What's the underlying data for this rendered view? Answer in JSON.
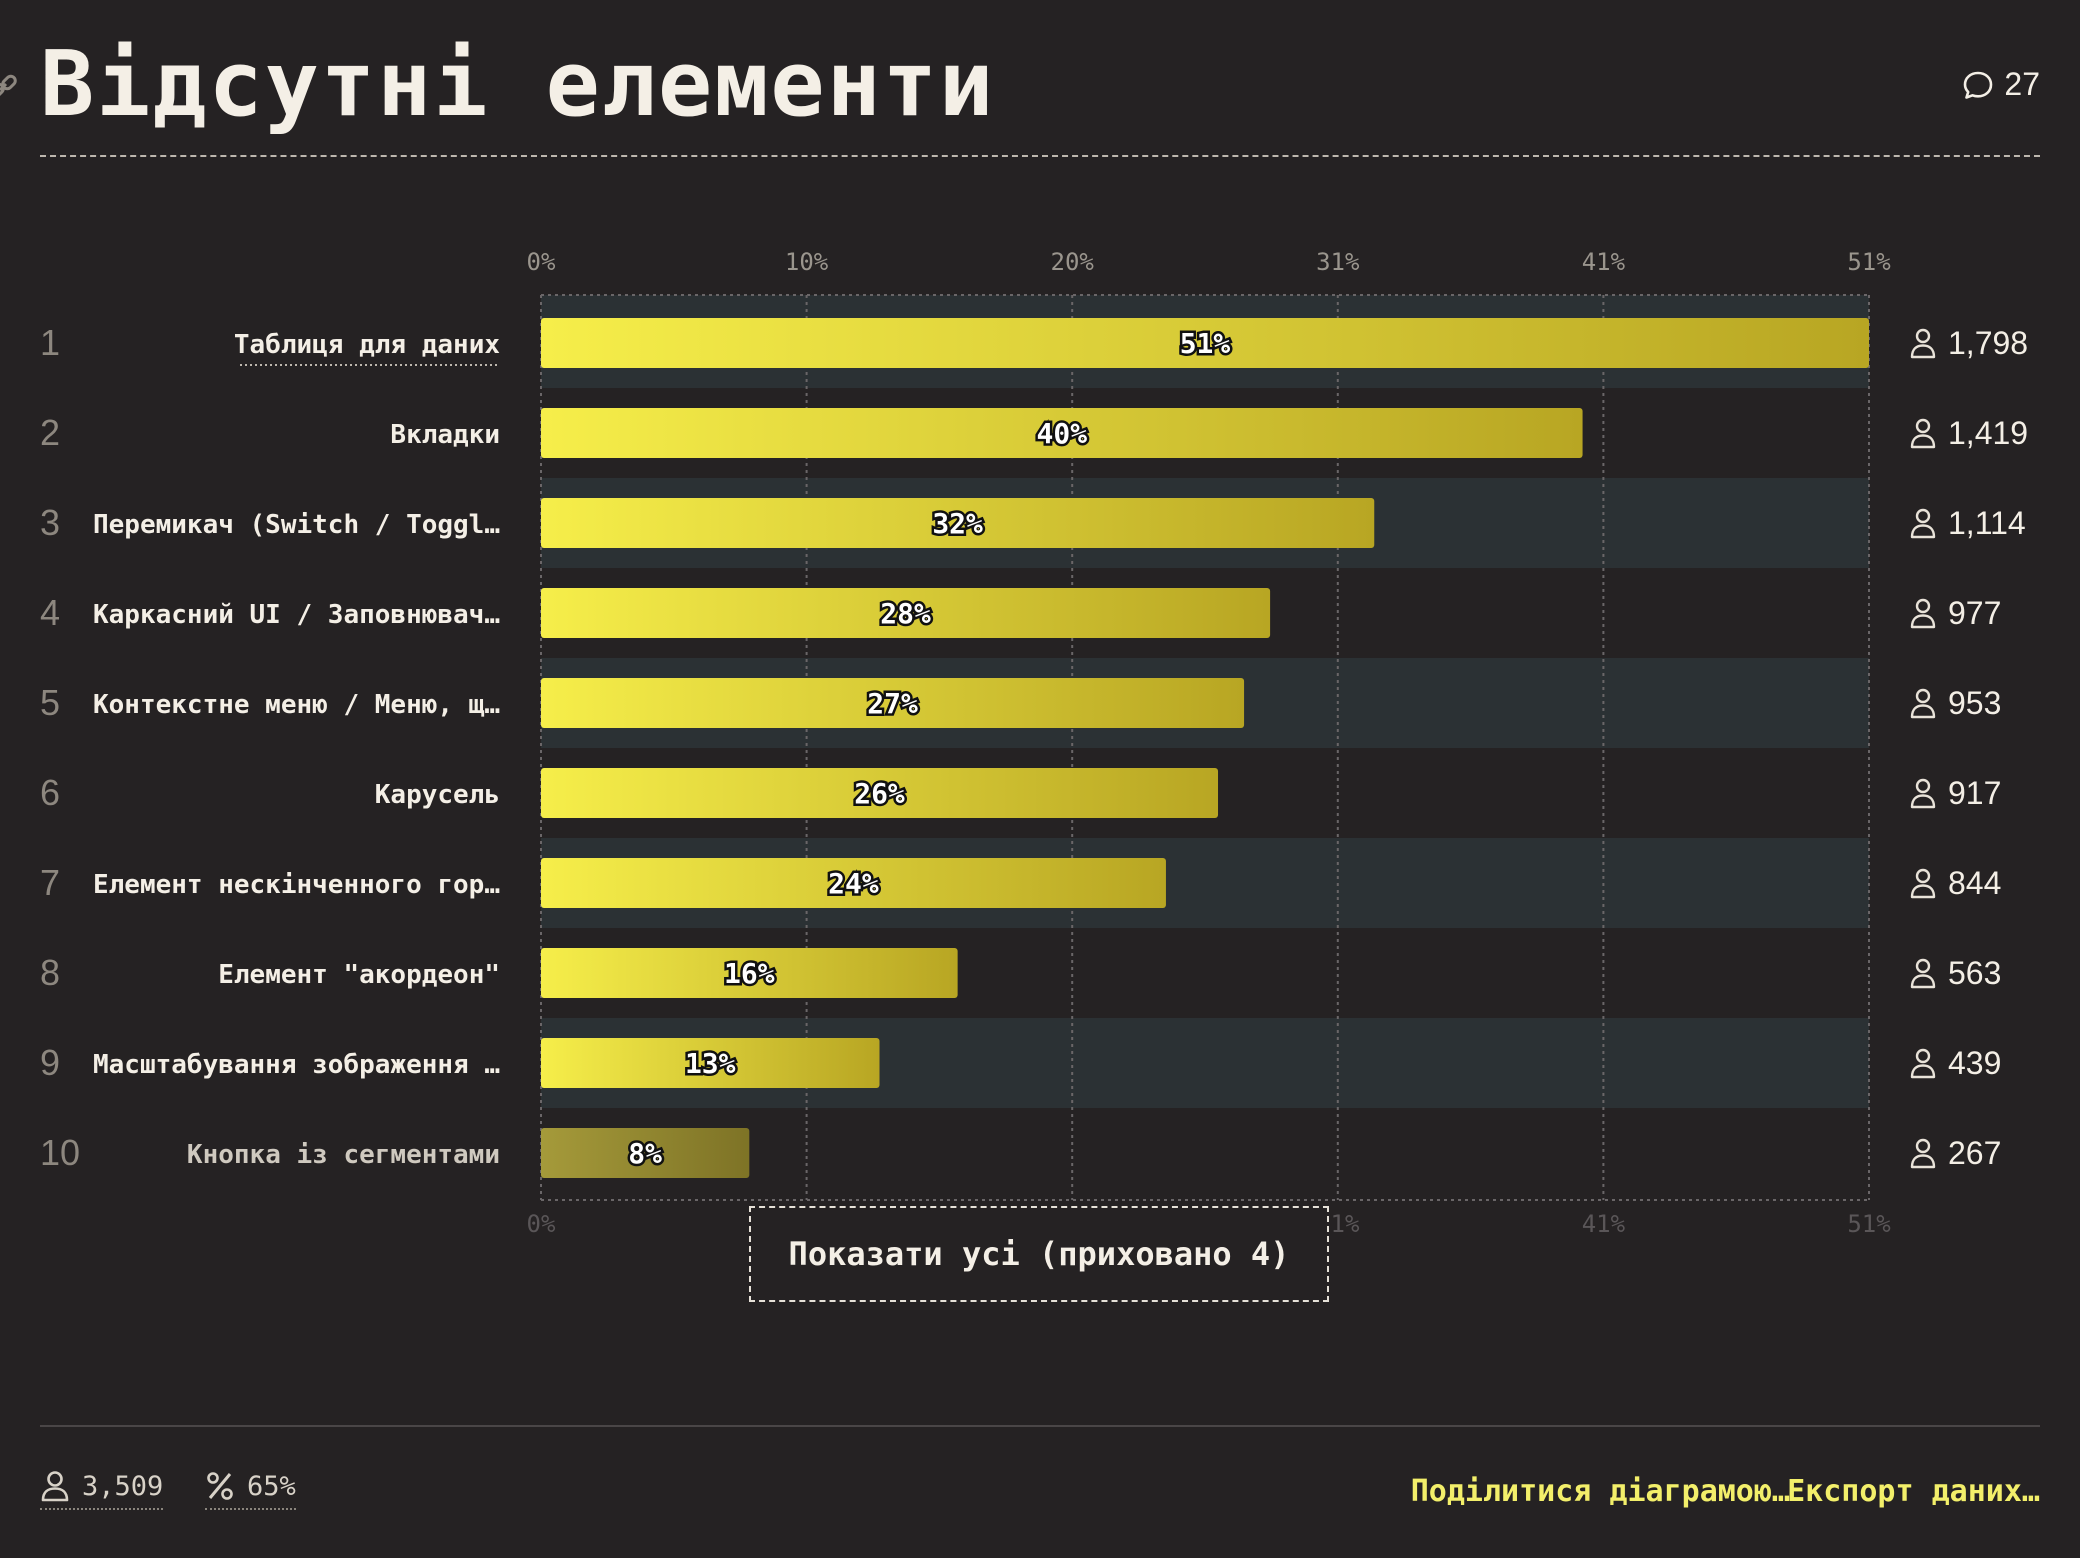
{
  "header": {
    "title": "Відсутні елементи",
    "comments_count": "27"
  },
  "chart_data": {
    "type": "bar",
    "orientation": "horizontal",
    "categories": [
      "Таблиця для даних",
      "Вкладки",
      "Перемикач (Switch / Toggl…",
      "Каркасний UI / Заповнювач…",
      "Контекстне меню / Меню, щ…",
      "Карусель",
      "Елемент нескінченного гор…",
      "Елемент \"акордеон\"",
      "Масштабування зображення …",
      "Кнопка із сегментами"
    ],
    "ranks": [
      "1",
      "2",
      "3",
      "4",
      "5",
      "6",
      "7",
      "8",
      "9",
      "10"
    ],
    "values": [
      51,
      40,
      32,
      28,
      27,
      26,
      24,
      16,
      13,
      8
    ],
    "value_labels": [
      "51%",
      "40%",
      "32%",
      "28%",
      "27%",
      "26%",
      "24%",
      "16%",
      "13%",
      "8%"
    ],
    "counts": [
      "1,798",
      "1,419",
      "1,114",
      "977",
      "953",
      "917",
      "844",
      "563",
      "439",
      "267"
    ],
    "x_ticks": [
      "0%",
      "10%",
      "20%",
      "31%",
      "41%",
      "51%"
    ],
    "xlim": [
      0,
      51
    ],
    "grid": true,
    "bar_gradient": [
      "#f6ee4a",
      "#b8a623"
    ],
    "last_bar_gradient": [
      "#a59a3a",
      "#7e7326"
    ],
    "row_band_color": "#2b3134"
  },
  "show_all_label": "Показати усі (приховано 4)",
  "footer": {
    "respondents": "3,509",
    "percent": "65%",
    "share_label": "Поділитися діаграмою…",
    "export_label": "Експорт даних…"
  },
  "colors": {
    "background": "#252223",
    "accent": "#f3ef6a"
  }
}
